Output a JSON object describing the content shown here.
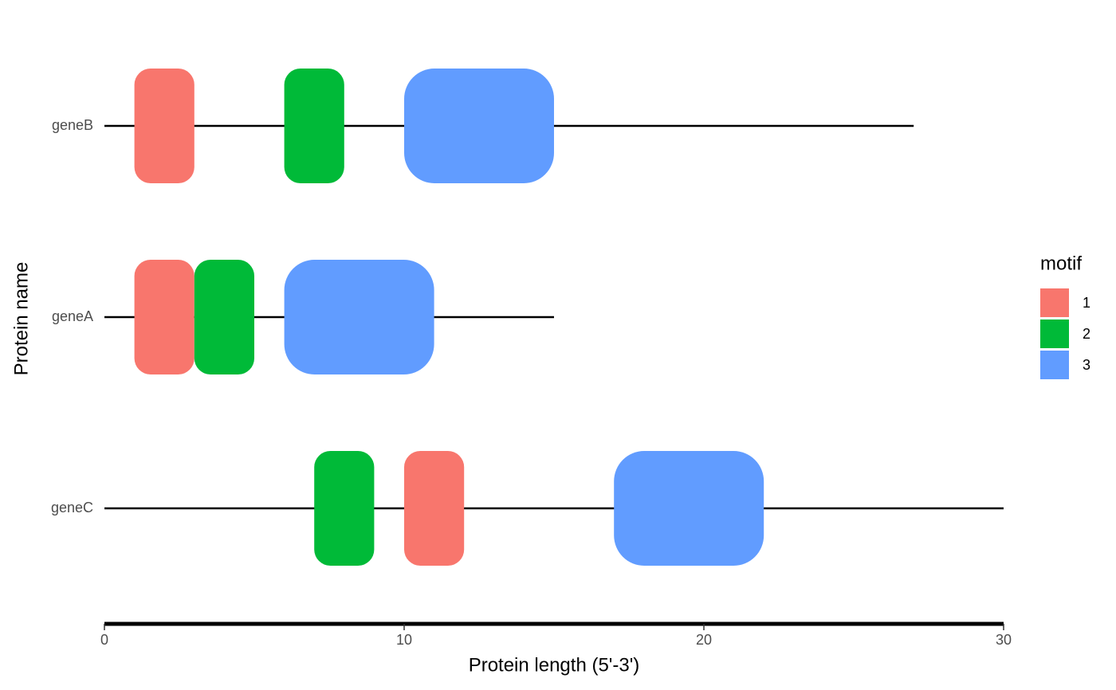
{
  "chart_data": {
    "type": "motif",
    "x_label": "Protein length (5'-3')",
    "y_label": "Protein name",
    "categories": [
      "geneB",
      "geneA",
      "geneC"
    ],
    "lengths": [
      27,
      15,
      30
    ],
    "xlim": [
      0,
      30
    ],
    "xticks": [
      0,
      10,
      20,
      30
    ],
    "legend_title": "motif",
    "legend_position": "right",
    "series": [
      {
        "name": "1",
        "color": "#f8766d",
        "gene": [
          "geneB",
          "geneA",
          "geneC"
        ],
        "start": [
          1,
          1,
          10
        ],
        "end": [
          3,
          3,
          12
        ]
      },
      {
        "name": "2",
        "color": "#00ba38",
        "gene": [
          "geneB",
          "geneA",
          "geneC"
        ],
        "start": [
          6,
          3,
          7
        ],
        "end": [
          8,
          5,
          9
        ]
      },
      {
        "name": "3",
        "color": "#619cff",
        "gene": [
          "geneB",
          "geneA",
          "geneC"
        ],
        "start": [
          10,
          6,
          17
        ],
        "end": [
          15,
          11,
          22
        ]
      }
    ]
  }
}
